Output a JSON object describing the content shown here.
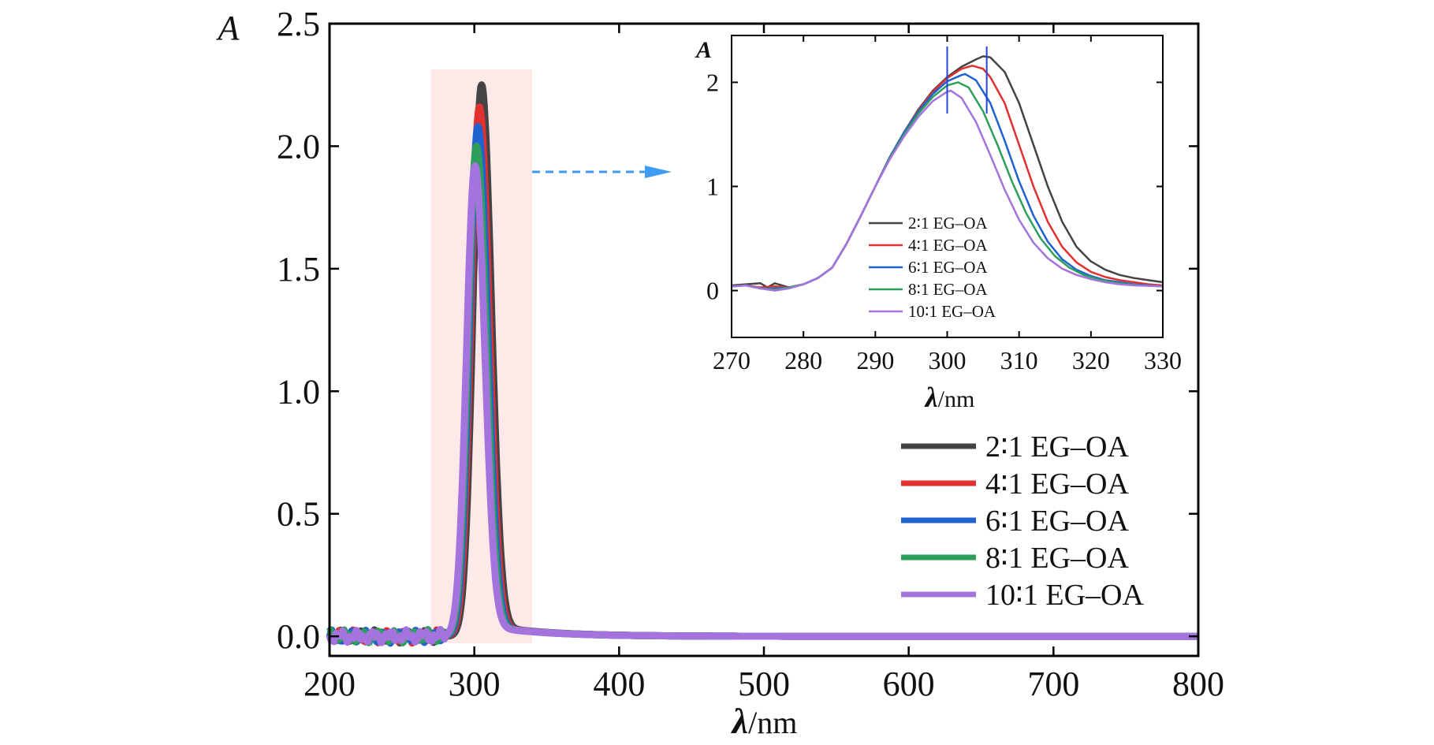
{
  "chart_data": [
    {
      "type": "line",
      "x_axis": {
        "label_symbol": "λ",
        "label_unit": "/nm",
        "lim": [
          200,
          800
        ],
        "ticks": [
          "200",
          "300",
          "400",
          "500",
          "600",
          "700",
          "800"
        ]
      },
      "y_axis": {
        "label": "A",
        "lim": [
          -0.08,
          2.5
        ],
        "ticks": [
          "0.0",
          "0.5",
          "1.0",
          "1.5",
          "2.0",
          "2.5"
        ]
      },
      "grid": false,
      "legend_position": "lower-right",
      "highlight_region": {
        "x": [
          270,
          340
        ]
      },
      "series": [
        {
          "name": "2∶1 EG–OA",
          "color": "#444444",
          "peak_x": 305,
          "peak_y": 2.25
        },
        {
          "name": "4∶1 EG–OA",
          "color": "#e03030",
          "peak_x": 303.5,
          "peak_y": 2.16
        },
        {
          "name": "6∶1 EG–OA",
          "color": "#1f62d0",
          "peak_x": 302.5,
          "peak_y": 2.08
        },
        {
          "name": "8∶1 EG–OA",
          "color": "#2e9e5b",
          "peak_x": 301.5,
          "peak_y": 2.0
        },
        {
          "name": "10∶1 EG–OA",
          "color": "#a573dd",
          "peak_x": 300.5,
          "peak_y": 1.92
        }
      ]
    },
    {
      "type": "line",
      "role": "inset",
      "x_axis": {
        "label_symbol": "λ",
        "label_unit": "/nm",
        "lim": [
          270,
          330
        ],
        "ticks": [
          "270",
          "280",
          "290",
          "300",
          "310",
          "320",
          "330"
        ]
      },
      "y_axis": {
        "label": "A",
        "lim": [
          -0.45,
          2.45
        ],
        "ticks": [
          "0",
          "1",
          "2"
        ]
      },
      "grid": false,
      "legend_position": "lower-left",
      "peak_markers_x": [
        300,
        305.5
      ],
      "series": [
        {
          "name": "2∶1 EG–OA",
          "color": "#444444",
          "x": [
            270,
            272,
            274,
            275,
            276,
            278,
            280,
            282,
            284,
            286,
            288,
            290,
            292,
            294,
            296,
            298,
            300,
            302,
            304,
            305,
            306,
            308,
            310,
            312,
            314,
            316,
            318,
            320,
            322,
            324,
            326,
            328,
            330
          ],
          "y": [
            0.05,
            0.06,
            0.07,
            0.03,
            0.07,
            0.03,
            0.06,
            0.12,
            0.22,
            0.45,
            0.72,
            1.0,
            1.28,
            1.52,
            1.74,
            1.92,
            2.05,
            2.15,
            2.22,
            2.25,
            2.24,
            2.1,
            1.8,
            1.4,
            1.0,
            0.66,
            0.42,
            0.28,
            0.2,
            0.15,
            0.12,
            0.1,
            0.08
          ]
        },
        {
          "name": "4∶1 EG–OA",
          "color": "#e03030",
          "x": [
            270,
            272,
            274,
            276,
            278,
            280,
            282,
            284,
            286,
            288,
            290,
            292,
            294,
            296,
            298,
            300,
            302,
            303.5,
            305,
            306,
            308,
            310,
            312,
            314,
            316,
            318,
            320,
            322,
            324,
            326,
            328,
            330
          ],
          "y": [
            0.04,
            0.05,
            0.03,
            0.04,
            0.03,
            0.06,
            0.12,
            0.22,
            0.45,
            0.72,
            1.0,
            1.28,
            1.52,
            1.73,
            1.91,
            2.04,
            2.13,
            2.16,
            2.13,
            2.05,
            1.8,
            1.4,
            1.0,
            0.66,
            0.42,
            0.27,
            0.18,
            0.13,
            0.1,
            0.08,
            0.06,
            0.05
          ]
        },
        {
          "name": "6∶1 EG–OA",
          "color": "#1f62d0",
          "x": [
            270,
            272,
            274,
            276,
            278,
            280,
            282,
            284,
            286,
            288,
            290,
            292,
            294,
            296,
            298,
            300,
            302,
            302.5,
            304,
            306,
            308,
            310,
            312,
            314,
            316,
            318,
            320,
            322,
            324,
            326,
            328,
            330
          ],
          "y": [
            0.04,
            0.05,
            0.02,
            0.02,
            0.03,
            0.06,
            0.12,
            0.22,
            0.45,
            0.72,
            1.0,
            1.28,
            1.52,
            1.72,
            1.89,
            2.01,
            2.07,
            2.08,
            2.02,
            1.8,
            1.44,
            1.05,
            0.72,
            0.47,
            0.3,
            0.2,
            0.14,
            0.1,
            0.08,
            0.06,
            0.05,
            0.04
          ]
        },
        {
          "name": "8∶1 EG–OA",
          "color": "#2e9e5b",
          "x": [
            270,
            272,
            274,
            276,
            278,
            280,
            282,
            284,
            286,
            288,
            290,
            292,
            294,
            296,
            298,
            300,
            301.5,
            303,
            305,
            307,
            309,
            311,
            313,
            315,
            317,
            319,
            321,
            323,
            325,
            327,
            330
          ],
          "y": [
            0.04,
            0.05,
            0.02,
            0.01,
            0.03,
            0.06,
            0.12,
            0.22,
            0.45,
            0.72,
            1.0,
            1.27,
            1.5,
            1.7,
            1.86,
            1.97,
            2.0,
            1.95,
            1.72,
            1.4,
            1.05,
            0.74,
            0.5,
            0.33,
            0.22,
            0.15,
            0.11,
            0.08,
            0.06,
            0.05,
            0.04
          ]
        },
        {
          "name": "10∶1 EG–OA",
          "color": "#a573dd",
          "x": [
            270,
            272,
            274,
            276,
            278,
            280,
            282,
            284,
            286,
            288,
            290,
            292,
            294,
            296,
            298,
            300,
            300.5,
            302,
            304,
            306,
            308,
            310,
            312,
            314,
            316,
            318,
            320,
            322,
            324,
            326,
            330
          ],
          "y": [
            0.04,
            0.05,
            0.02,
            0.0,
            0.02,
            0.06,
            0.12,
            0.22,
            0.45,
            0.72,
            1.0,
            1.26,
            1.48,
            1.67,
            1.82,
            1.91,
            1.92,
            1.85,
            1.62,
            1.3,
            0.97,
            0.68,
            0.46,
            0.31,
            0.21,
            0.15,
            0.11,
            0.08,
            0.06,
            0.05,
            0.04
          ]
        }
      ]
    }
  ]
}
